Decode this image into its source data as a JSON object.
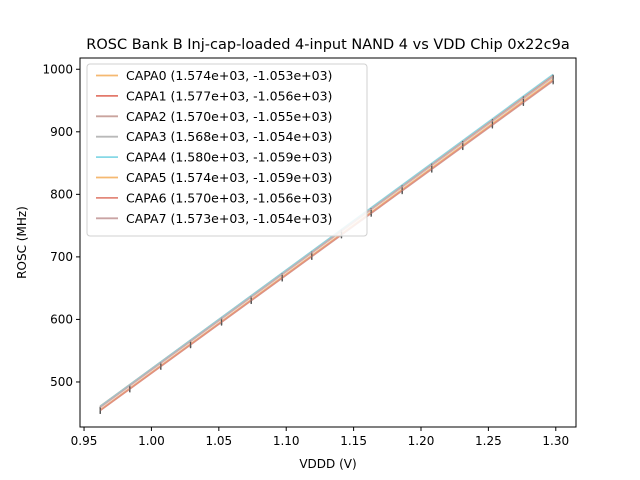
{
  "chart_data": {
    "type": "line",
    "title": "ROSC Bank B Inj-cap-loaded 4-input NAND 4 vs VDD Chip 0x22c9a",
    "xlabel": "VDDD (V)",
    "ylabel": "ROSC (MHz)",
    "xlim": [
      0.947,
      1.315
    ],
    "ylim": [
      428,
      1018
    ],
    "x_ticks": [
      0.95,
      1.0,
      1.05,
      1.1,
      1.15,
      1.2,
      1.25,
      1.3
    ],
    "x_tick_labels": [
      "0.95",
      "1.00",
      "1.05",
      "1.10",
      "1.15",
      "1.20",
      "1.25",
      "1.30"
    ],
    "y_ticks": [
      500,
      600,
      700,
      800,
      900,
      1000
    ],
    "y_tick_labels": [
      "500",
      "600",
      "700",
      "800",
      "900",
      "1000"
    ],
    "grid": false,
    "legend_location": "upper-left",
    "x": [
      0.962,
      0.984,
      1.007,
      1.029,
      1.052,
      1.074,
      1.097,
      1.119,
      1.141,
      1.163,
      1.186,
      1.208,
      1.231,
      1.253,
      1.276,
      1.298
    ],
    "series": [
      {
        "name": "CAPA0",
        "legend": "CAPA0 (1.574e+03, -1.053e+03)",
        "slope": 1574,
        "intercept": -1053,
        "color": "#f5b971"
      },
      {
        "name": "CAPA1",
        "legend": "CAPA1 (1.577e+03, -1.056e+03)",
        "slope": 1577,
        "intercept": -1056,
        "color": "#e3796b"
      },
      {
        "name": "CAPA2",
        "legend": "CAPA2 (1.570e+03, -1.055e+03)",
        "slope": 1570,
        "intercept": -1055,
        "color": "#c9a49e"
      },
      {
        "name": "CAPA3",
        "legend": "CAPA3 (1.568e+03, -1.054e+03)",
        "slope": 1568,
        "intercept": -1054,
        "color": "#b9b9b9"
      },
      {
        "name": "CAPA4",
        "legend": "CAPA4 (1.580e+03, -1.059e+03)",
        "slope": 1580,
        "intercept": -1059,
        "color": "#86d8e6"
      },
      {
        "name": "CAPA5",
        "legend": "CAPA5 (1.574e+03, -1.059e+03)",
        "slope": 1574,
        "intercept": -1059,
        "color": "#f5b971"
      },
      {
        "name": "CAPA6",
        "legend": "CAPA6 (1.570e+03, -1.056e+03)",
        "slope": 1570,
        "intercept": -1056,
        "color": "#e3897b"
      },
      {
        "name": "CAPA7",
        "legend": "CAPA7 (1.573e+03, -1.054e+03)",
        "slope": 1573,
        "intercept": -1054,
        "color": "#c9a4a4"
      }
    ]
  }
}
